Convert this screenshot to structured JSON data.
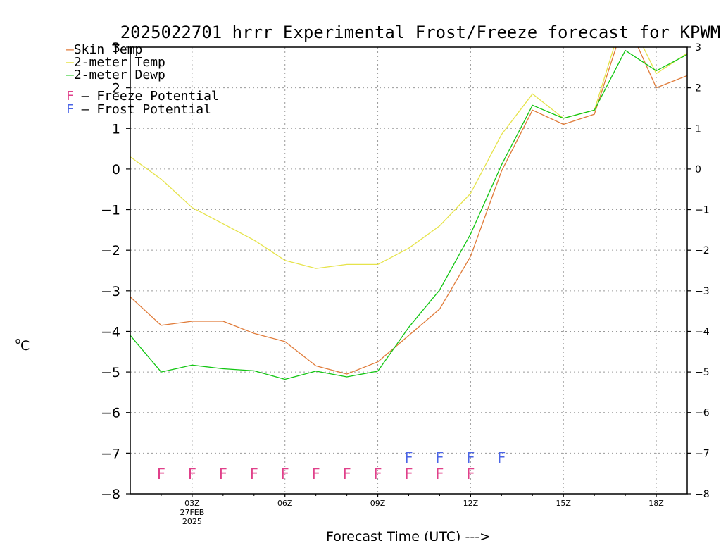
{
  "chart_data": {
    "type": "line",
    "title": "2025022701 hrrr Experimental Frost/Freeze forecast for KPWM",
    "xlabel": "Forecast Time (UTC) --->",
    "ylabel": "°C",
    "ylabel_prefix": "o",
    "ylabel_unit": "C",
    "ylim": [
      -8,
      3
    ],
    "xlim": [
      1,
      19
    ],
    "yticks": [
      -8,
      -7,
      -6,
      -5,
      -4,
      -3,
      -2,
      -1,
      0,
      1,
      2,
      3
    ],
    "xticks": [
      {
        "x": 3,
        "label": "03Z",
        "sub": [
          "27FEB",
          "2025"
        ]
      },
      {
        "x": 6,
        "label": "06Z",
        "sub": []
      },
      {
        "x": 9,
        "label": "09Z",
        "sub": []
      },
      {
        "x": 12,
        "label": "12Z",
        "sub": []
      },
      {
        "x": 15,
        "label": "15Z",
        "sub": []
      },
      {
        "x": 18,
        "label": "18Z",
        "sub": []
      }
    ],
    "grid": true,
    "x": [
      1,
      2,
      3,
      4,
      5,
      6,
      7,
      8,
      9,
      10,
      11,
      12,
      13,
      14,
      15,
      16,
      17,
      18,
      19
    ],
    "series": [
      {
        "name": "Skin Temp",
        "color": "#e07b39",
        "values": [
          -3.15,
          -3.85,
          -3.75,
          -3.75,
          -4.05,
          -4.25,
          -4.85,
          -5.05,
          -4.75,
          -4.1,
          -3.45,
          -2.15,
          -0.05,
          1.45,
          1.1,
          1.35,
          3.7,
          2.0,
          2.3
        ]
      },
      {
        "name": "2-meter Temp",
        "color": "#e6e34a",
        "values": [
          0.3,
          -0.25,
          -0.95,
          -1.35,
          -1.75,
          -2.25,
          -2.45,
          -2.35,
          -2.35,
          -1.95,
          -1.4,
          -0.6,
          0.85,
          1.85,
          1.25,
          1.45,
          3.9,
          2.35,
          2.85
        ]
      },
      {
        "name": "2-meter Dewp",
        "color": "#12c612",
        "values": [
          -4.1,
          -5.0,
          -4.83,
          -4.92,
          -4.97,
          -5.18,
          -4.98,
          -5.12,
          -4.98,
          -3.9,
          -2.98,
          -1.6,
          0.1,
          1.57,
          1.25,
          1.45,
          2.92,
          2.42,
          2.82
        ]
      }
    ],
    "potential_markers": {
      "freeze": {
        "label": "F",
        "text": "Freeze Potential",
        "color": "#e0408a",
        "y": -7.5,
        "x": [
          2,
          3,
          4,
          5,
          6,
          7,
          8,
          9,
          10,
          11,
          12
        ]
      },
      "frost": {
        "label": "F",
        "text": "Frost Potential",
        "color": "#4a64e6",
        "y": -7.1,
        "x": [
          10,
          11,
          12,
          13
        ]
      }
    },
    "legend_dash": "–",
    "legend_placement": "top-left"
  }
}
